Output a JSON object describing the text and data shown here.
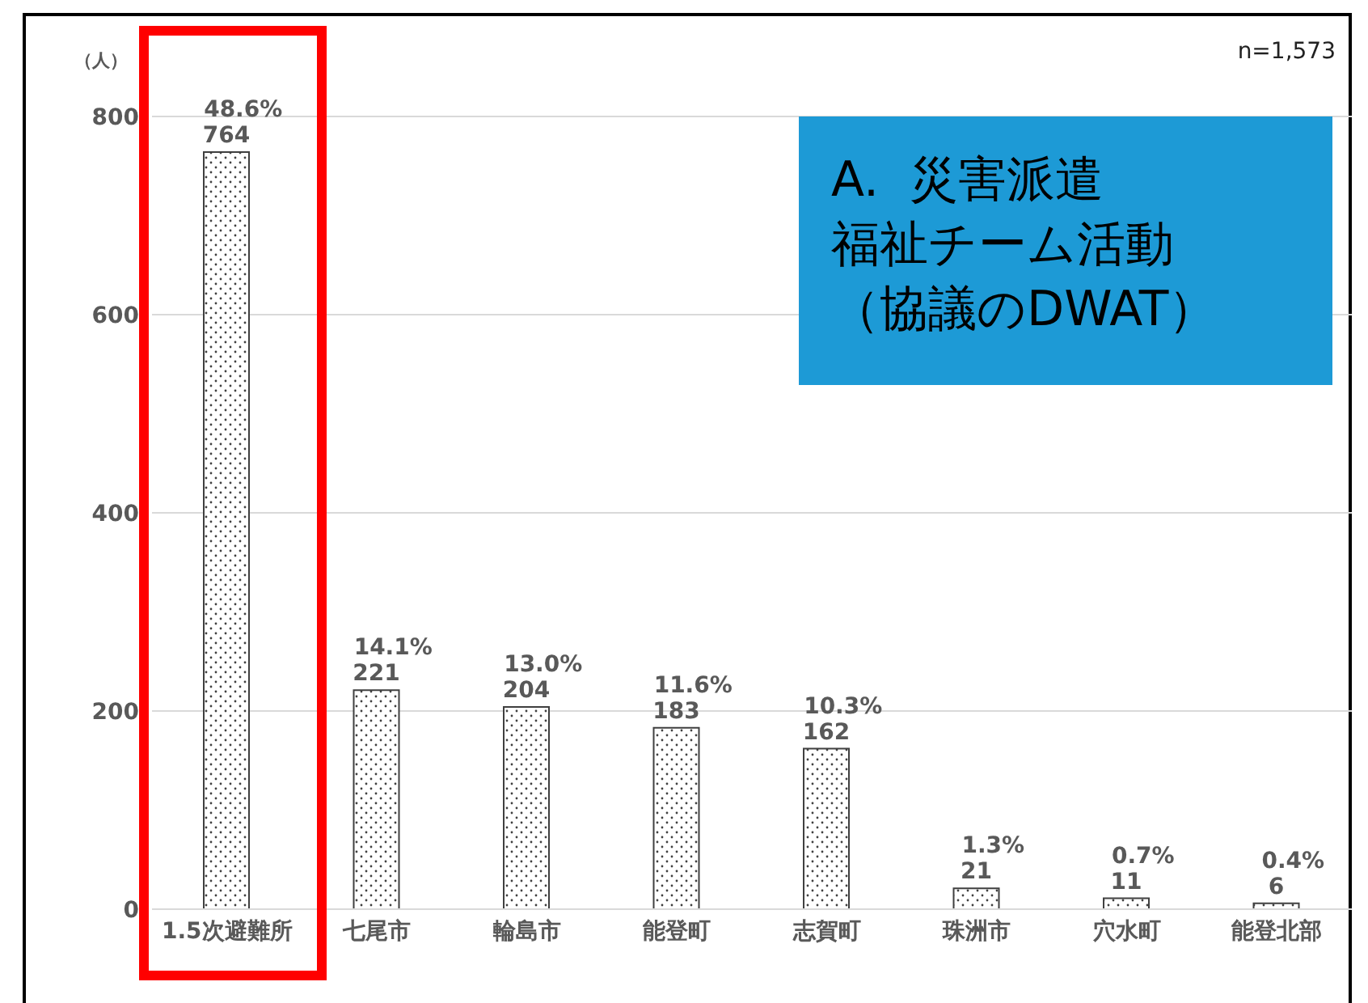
{
  "chart_data": {
    "type": "bar",
    "title": "A.  災害派遣",
    "subtitle": "福祉チーム活動（協議のDWAT）",
    "ylabel": "（人）",
    "categories": [
      "1.5次避難所",
      "七尾市",
      "輪島市",
      "能登町",
      "志賀町",
      "珠洲市",
      "穴水町",
      "能登北部"
    ],
    "values": [
      764,
      221,
      204,
      183,
      162,
      21,
      11,
      6
    ],
    "color": "#404040",
    "ylim": [
      0,
      800
    ],
    "yticks": [
      0,
      200,
      400,
      600,
      800
    ],
    "grid": "y",
    "legend": false,
    "data_labels": true,
    "annotations": [
      "n=1,573",
      {
        "text": "48.6%",
        "x": "1.5次避難所",
        "y": 764
      },
      {
        "text": "14.1%",
        "x": "七尾市",
        "y": 221
      },
      {
        "text": "13.0%",
        "x": "輪島市",
        "y": 204
      },
      {
        "text": "11.6%",
        "x": "能登町",
        "y": 183
      },
      {
        "text": "10.3%",
        "x": "志賀町",
        "y": 162
      },
      {
        "text": "1.3%",
        "x": "珠洲市",
        "y": 21
      },
      {
        "text": "0.7%",
        "x": "穴水町",
        "y": 11
      },
      {
        "text": "0.4%",
        "x": "能登北部",
        "y": 6
      }
    ]
  }
}
